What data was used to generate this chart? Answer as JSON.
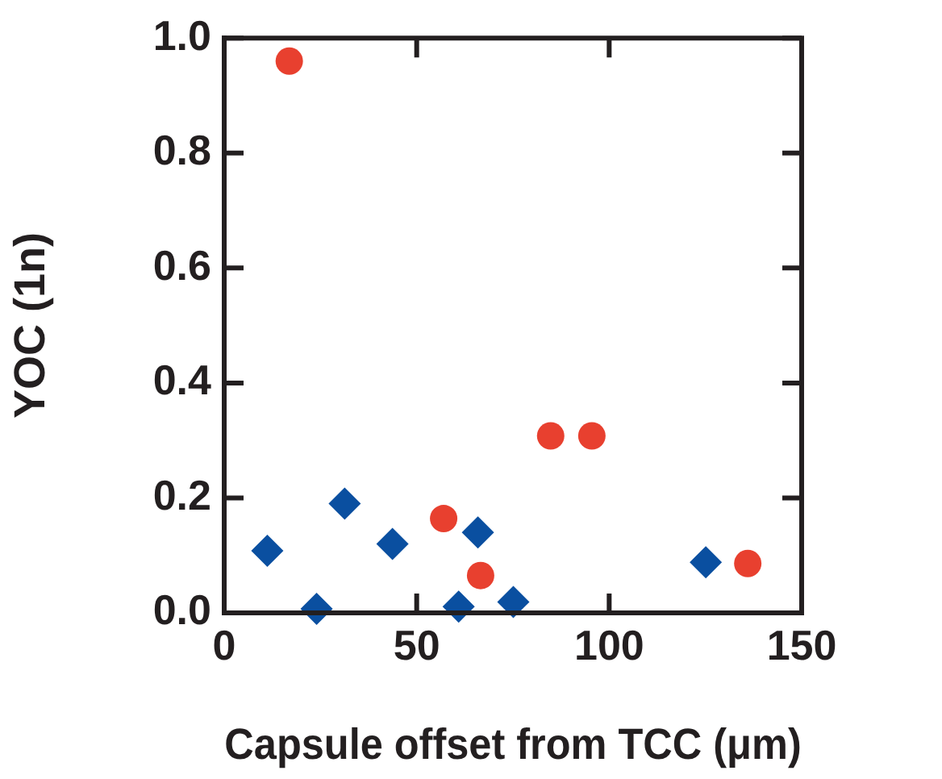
{
  "chart_data": {
    "type": "scatter",
    "xlabel": "Capsule offset from TCC (μm)",
    "ylabel": "YOC (1n)",
    "xlim": [
      0,
      150
    ],
    "xticks": [
      0,
      50,
      100,
      150
    ],
    "ylim": [
      0,
      1
    ],
    "yticks": [
      {
        "value": 0,
        "label": "0.0"
      },
      0.2,
      0.4,
      0.6,
      0.8,
      {
        "value": 1,
        "label": "1.0"
      }
    ],
    "grid": false,
    "legend": false,
    "series": [
      {
        "color": "#e8402f",
        "marker": "circle",
        "x": [
          16.9,
          57,
          66.6,
          84.8,
          95.5,
          136
        ],
        "values": [
          0.96,
          0.164,
          0.065,
          0.308,
          0.308,
          0.086
        ]
      },
      {
        "color": "#0a4fa0",
        "marker": "diamond",
        "x": [
          11.2,
          24,
          31.3,
          43.7,
          65.9,
          60.9,
          75.1,
          125.1
        ],
        "values": [
          0.108,
          0.007,
          0.19,
          0.12,
          0.14,
          0.011,
          0.019,
          0.088
        ]
      }
    ]
  }
}
